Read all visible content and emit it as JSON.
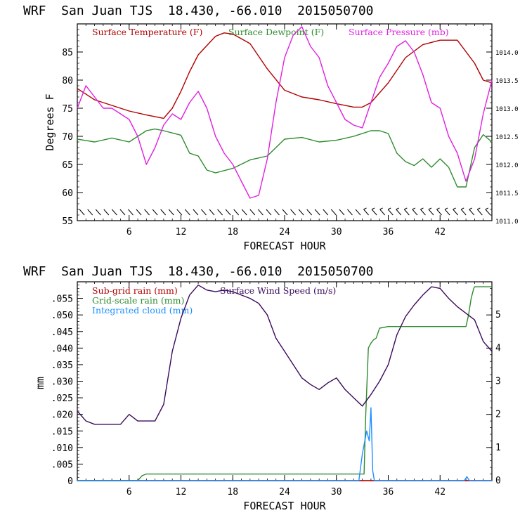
{
  "chart_data": [
    {
      "type": "line",
      "header": "WRF  San Juan TJS  18.430, -66.010  2015050700",
      "xlabel": "FORECAST HOUR",
      "ylabel": "Degrees F",
      "xlim": [
        0,
        48
      ],
      "x_ticks": [
        "6",
        "12",
        "18",
        "24",
        "30",
        "36",
        "42"
      ],
      "ylim": [
        55,
        90
      ],
      "y_ticks": [
        "55",
        "60",
        "65",
        "70",
        "75",
        "80",
        "85"
      ],
      "y2lim": [
        1011.0,
        1014.5
      ],
      "y2_ticks": [
        "1011.0",
        "1011.5",
        "1012.0",
        "1012.5",
        "1013.0",
        "1013.5",
        "1014.0"
      ],
      "grid": false,
      "legend": "top",
      "series": [
        {
          "name": "Surface Temperature (F)",
          "color": "#b00000",
          "axis": "left",
          "x": [
            0,
            2,
            4,
            6,
            8,
            10,
            11,
            12,
            13,
            14,
            16,
            17,
            18,
            20,
            22,
            24,
            26,
            28,
            30,
            32,
            33,
            34,
            36,
            38,
            40,
            42,
            44,
            46,
            47,
            48
          ],
          "y": [
            78.5,
            76.5,
            75.5,
            74.5,
            73.8,
            73.2,
            75,
            78,
            81.5,
            84.5,
            87.8,
            88.4,
            88.2,
            86.5,
            82,
            78.2,
            77,
            76.5,
            75.8,
            75.2,
            75.2,
            76,
            79.5,
            84,
            86.3,
            87.1,
            87.1,
            83,
            80,
            79.5
          ]
        },
        {
          "name": "Surface Dewpoint (F)",
          "color": "#2e8b2e",
          "axis": "left",
          "x": [
            0,
            2,
            4,
            6,
            8,
            9,
            10,
            12,
            13,
            14,
            15,
            16,
            18,
            20,
            22,
            24,
            26,
            28,
            30,
            32,
            34,
            35,
            36,
            37,
            38,
            39,
            40,
            41,
            42,
            43,
            44,
            45,
            46,
            47,
            48
          ],
          "y": [
            69.5,
            69,
            69.7,
            69,
            71,
            71.3,
            71,
            70.2,
            67,
            66.5,
            64,
            63.5,
            64.3,
            65.8,
            66.5,
            69.5,
            69.8,
            69,
            69.3,
            70,
            71,
            71,
            70.5,
            67,
            65.5,
            64.8,
            66,
            64.5,
            66,
            64.5,
            61,
            61,
            68,
            70.3,
            69
          ]
        },
        {
          "name": "Surface Pressure (mb)",
          "color": "#e020e0",
          "axis": "right",
          "x": [
            0,
            1,
            2,
            3,
            4,
            5,
            6,
            7,
            8,
            9,
            10,
            11,
            12,
            13,
            14,
            15,
            16,
            17,
            18,
            19,
            20,
            21,
            22,
            23,
            24,
            25,
            26,
            27,
            28,
            29,
            30,
            31,
            32,
            33,
            34,
            35,
            36,
            37,
            38,
            39,
            40,
            41,
            42,
            43,
            44,
            45,
            46,
            47,
            48
          ],
          "y": [
            1013.0,
            1013.4,
            1013.2,
            1013.0,
            1013.0,
            1012.9,
            1012.8,
            1012.5,
            1012.0,
            1012.3,
            1012.7,
            1012.9,
            1012.8,
            1013.1,
            1013.3,
            1013.0,
            1012.5,
            1012.2,
            1012.0,
            1011.7,
            1011.4,
            1011.45,
            1012.1,
            1013.1,
            1013.9,
            1014.3,
            1014.45,
            1014.1,
            1013.9,
            1013.4,
            1013.1,
            1012.8,
            1012.7,
            1012.65,
            1013.1,
            1013.55,
            1013.8,
            1014.1,
            1014.2,
            1014.0,
            1013.6,
            1013.1,
            1013.0,
            1012.5,
            1012.2,
            1011.7,
            1012.1,
            1012.9,
            1013.5
          ]
        }
      ],
      "wind_barbs": "row of wind barbs along the bottom of the panel"
    },
    {
      "type": "line",
      "header": "WRF  San Juan TJS  18.430, -66.010  2015050700",
      "xlabel": "FORECAST HOUR",
      "ylabel": "mm",
      "xlim": [
        0,
        48
      ],
      "x_ticks": [
        "6",
        "12",
        "18",
        "24",
        "30",
        "36",
        "42"
      ],
      "ylim": [
        0,
        0.06
      ],
      "y_ticks": [
        "0",
        ".005",
        ".010",
        ".015",
        ".020",
        ".025",
        ".030",
        ".035",
        ".040",
        ".045",
        ".050",
        ".055"
      ],
      "y2lim": [
        0,
        6
      ],
      "y2_ticks": [
        "0",
        "1",
        "2",
        "3",
        "4",
        "5"
      ],
      "grid": false,
      "legend": "top-left",
      "series": [
        {
          "name": "Sub-grid rain (mm)",
          "color": "#b00000",
          "axis": "left",
          "x": [
            0,
            48
          ],
          "y": [
            0,
            0
          ]
        },
        {
          "name": "Grid-scale rain (mm)",
          "color": "#2e8b2e",
          "axis": "left",
          "x": [
            0,
            7,
            7.5,
            8,
            33.2,
            33.4,
            33.7,
            34,
            34.3,
            34.6,
            35,
            36,
            45,
            45.3,
            45.6,
            45.9,
            46,
            48
          ],
          "y": [
            0,
            0,
            0.0015,
            0.002,
            0.002,
            0.02,
            0.04,
            0.0415,
            0.0425,
            0.043,
            0.046,
            0.0465,
            0.0465,
            0.05,
            0.055,
            0.058,
            0.0585,
            0.0585
          ]
        },
        {
          "name": "Integrated cloud (mm)",
          "color": "#1e90ff",
          "axis": "left",
          "x": [
            0,
            32.6,
            33,
            33.5,
            33.8,
            34,
            34.2,
            34.4,
            44.8,
            45.1,
            45.4,
            48
          ],
          "y": [
            0,
            0,
            0.008,
            0.015,
            0.012,
            0.022,
            0.003,
            0,
            0,
            0.0012,
            0,
            0
          ]
        },
        {
          "name": "Surface Wind Speed (m/s)",
          "color": "#3a0a5a",
          "axis": "right",
          "x": [
            0,
            1,
            2,
            3,
            4,
            5,
            6,
            7,
            8,
            9,
            10,
            11,
            12,
            13,
            14,
            15,
            16,
            17,
            18,
            19,
            20,
            21,
            22,
            23,
            24,
            25,
            26,
            27,
            28,
            29,
            30,
            31,
            32,
            33,
            34,
            35,
            36,
            37,
            38,
            39,
            40,
            41,
            42,
            43,
            44,
            45,
            46,
            47,
            48
          ],
          "y": [
            2.1,
            1.8,
            1.7,
            1.7,
            1.7,
            1.7,
            2.0,
            1.8,
            1.8,
            1.8,
            2.3,
            3.9,
            4.9,
            5.6,
            5.9,
            5.75,
            5.7,
            5.75,
            5.7,
            5.6,
            5.5,
            5.35,
            5.0,
            4.3,
            3.9,
            3.5,
            3.1,
            2.9,
            2.75,
            2.95,
            3.1,
            2.75,
            2.5,
            2.25,
            2.6,
            3.0,
            3.5,
            4.4,
            4.95,
            5.3,
            5.6,
            5.85,
            5.8,
            5.5,
            5.25,
            5.05,
            4.85,
            4.2,
            3.9
          ]
        }
      ]
    }
  ]
}
